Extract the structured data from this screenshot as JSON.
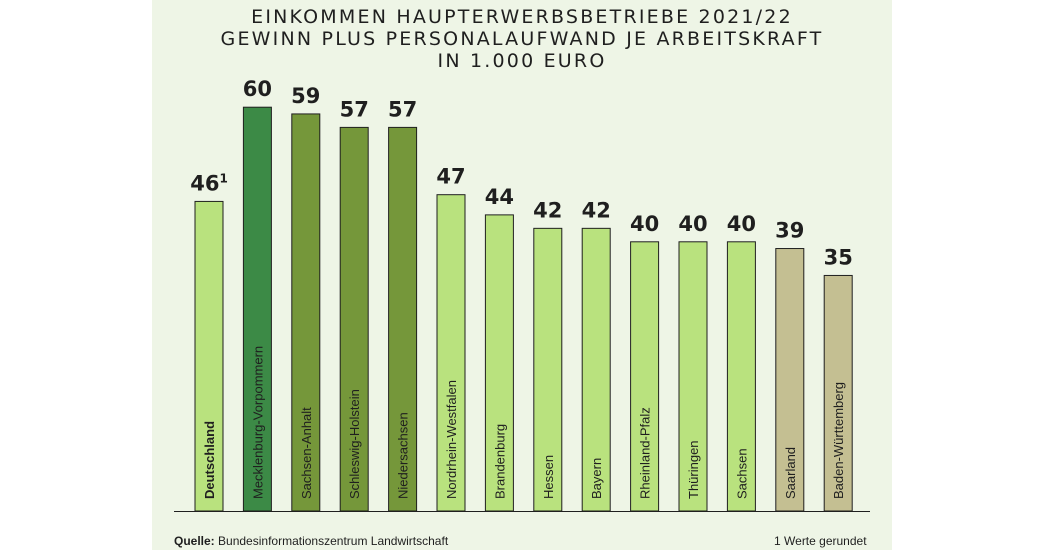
{
  "chart_data": {
    "type": "bar",
    "title": "EINKOMMEN HAUPTERWERBSBETRIEBE 2021/22",
    "subtitle_lines": [
      "GEWINN PLUS PERSONALAUFWAND JE ARBEITSKRAFT",
      "IN 1.000 EURO"
    ],
    "categories": [
      "Deutschland",
      "Mecklenburg-Vorpommern",
      "Sachsen-Anhalt",
      "Schleswig-Holstein",
      "Niedersachsen",
      "Nordrhein-Westfalen",
      "Brandenburg",
      "Hessen",
      "Bayern",
      "Rheinland-Pfalz",
      "Thüringen",
      "Sachsen",
      "Saarland",
      "Baden-Württemberg"
    ],
    "values": [
      46,
      60,
      59,
      57,
      57,
      47,
      44,
      42,
      42,
      40,
      40,
      40,
      39,
      35
    ],
    "value_labels": [
      "46",
      "60",
      "59",
      "57",
      "57",
      "47",
      "44",
      "42",
      "42",
      "40",
      "40",
      "40",
      "39",
      "35"
    ],
    "value_label_superscripts": [
      "1",
      "",
      "",
      "",
      "",
      "",
      "",
      "",
      "",
      "",
      "",
      "",
      "",
      ""
    ],
    "bar_colors": [
      "#b9e27e",
      "#3c8a46",
      "#75973a",
      "#75973a",
      "#75973a",
      "#b9e27e",
      "#b9e27e",
      "#b9e27e",
      "#b9e27e",
      "#b9e27e",
      "#b9e27e",
      "#b9e27e",
      "#c4bf92",
      "#c4bf92"
    ],
    "bold_categories": [
      "Deutschland"
    ],
    "xlabel": "",
    "ylabel": "",
    "ylim": [
      0,
      60
    ],
    "grid": false,
    "legend": "none"
  },
  "footer": {
    "source_label": "Quelle:",
    "source_text": "Bundesinformationszentrum Landwirtschaft",
    "footnote_marker": "1",
    "footnote_text": "Werte gerundet"
  },
  "colors": {
    "background": "#eef5e6",
    "text": "#1f1f1f",
    "bar_outline": "#1f1f1f"
  }
}
